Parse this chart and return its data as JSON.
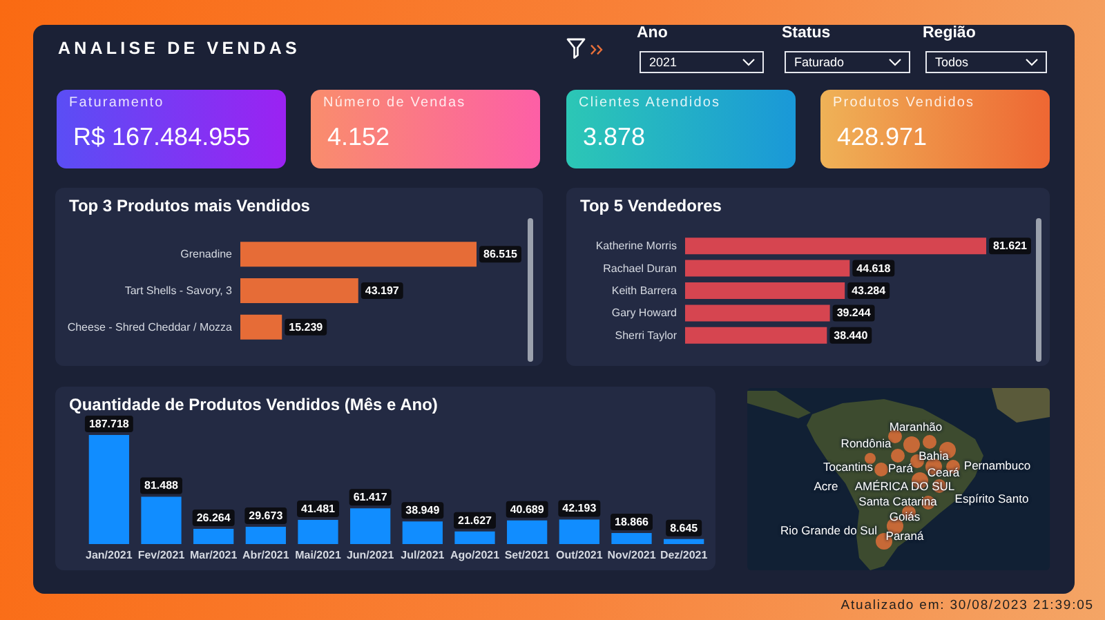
{
  "chart_data": [
    {
      "type": "other",
      "title": "ANALISE DE VENDAS",
      "annotations": [
        "Ano",
        "2021",
        "Status",
        "Faturado",
        "Região",
        "Todos"
      ]
    },
    {
      "type": "other",
      "title": "Faturamento",
      "annotations": [
        "R$ 167.484.955"
      ]
    },
    {
      "type": "other",
      "title": "Número de Vendas",
      "annotations": [
        "4.152"
      ]
    },
    {
      "type": "other",
      "title": "Clientes Atendidos",
      "annotations": [
        "3.878"
      ]
    },
    {
      "type": "other",
      "title": "Produtos Vendidos",
      "annotations": [
        "428.971"
      ]
    },
    {
      "type": "bar",
      "orientation": "horizontal",
      "title": "Top 3 Produtos mais Vendidos",
      "categories": [
        "Grenadine",
        "Tart Shells - Savory, 3",
        "Cheese - Shred Cheddar / Mozza"
      ],
      "values": [
        86515,
        43197,
        15239
      ],
      "value_labels": [
        "86.515",
        "43.197",
        "15.239"
      ],
      "color": "#e66c37"
    },
    {
      "type": "bar",
      "orientation": "horizontal",
      "title": "Top 5 Vendedores",
      "categories": [
        "Katherine Morris",
        "Rachael Duran",
        "Keith Barrera",
        "Gary Howard",
        "Sherri Taylor"
      ],
      "values": [
        81621,
        44618,
        43284,
        39244,
        38440
      ],
      "value_labels": [
        "81.621",
        "44.618",
        "43.284",
        "39.244",
        "38.440"
      ],
      "color": "#d64550"
    },
    {
      "type": "bar",
      "title": "Quantidade de Produtos Vendidos (Mês e Ano)",
      "categories": [
        "Jan/2021",
        "Fev/2021",
        "Mar/2021",
        "Abr/2021",
        "Mai/2021",
        "Jun/2021",
        "Jul/2021",
        "Ago/2021",
        "Set/2021",
        "Out/2021",
        "Nov/2021",
        "Dez/2021"
      ],
      "values": [
        187718,
        81488,
        26264,
        29673,
        41481,
        61417,
        38949,
        21627,
        40689,
        42193,
        18866,
        8645
      ],
      "value_labels": [
        "187.718",
        "81.488",
        "26.264",
        "29.673",
        "41.481",
        "61.417",
        "38.949",
        "21.627",
        "40.689",
        "42.193",
        "18.866",
        "8.645"
      ],
      "color": "#118dff"
    },
    {
      "type": "other",
      "annotations": [
        "Maranhão",
        "Rondônia",
        "Bahia",
        "Pernambuco",
        "Tocantins",
        "Pará",
        "Ceará",
        "AMÉRICA DO SUL",
        "Acre",
        "Santa Catarina",
        "Espírito Santo",
        "Goiás",
        "Rio Grande do Sul",
        "Paraná"
      ]
    },
    {
      "type": "other",
      "annotations": [
        "Atualizado em: 30/08/2023 21:39:05"
      ]
    }
  ]
}
